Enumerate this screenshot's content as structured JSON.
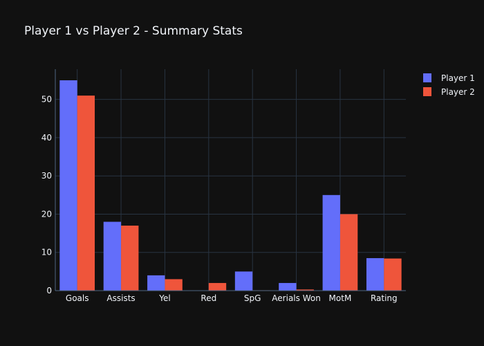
{
  "chart_data": {
    "type": "bar",
    "title": "Player 1 vs Player 2 - Summary Stats",
    "xlabel": "",
    "ylabel": "",
    "categories": [
      "Goals",
      "Assists",
      "Yel",
      "Red",
      "SpG",
      "Aerials Won",
      "MotM",
      "Rating"
    ],
    "series": [
      {
        "name": "Player 1",
        "color": "#636efa",
        "values": [
          55,
          18,
          4,
          0,
          5,
          2,
          25,
          8.5
        ]
      },
      {
        "name": "Player 2",
        "color": "#ef553b",
        "values": [
          51,
          17,
          3,
          2,
          0.1,
          0.3,
          20,
          8.4
        ]
      }
    ],
    "ylim": [
      0,
      57.9
    ],
    "yticks": [
      0,
      10,
      20,
      30,
      40,
      50
    ],
    "grid": true,
    "legend_position": "top-right"
  },
  "colors": {
    "background": "#111111",
    "grid": "#283442",
    "axis_line": "#506784",
    "text": "#f2f5fa"
  }
}
